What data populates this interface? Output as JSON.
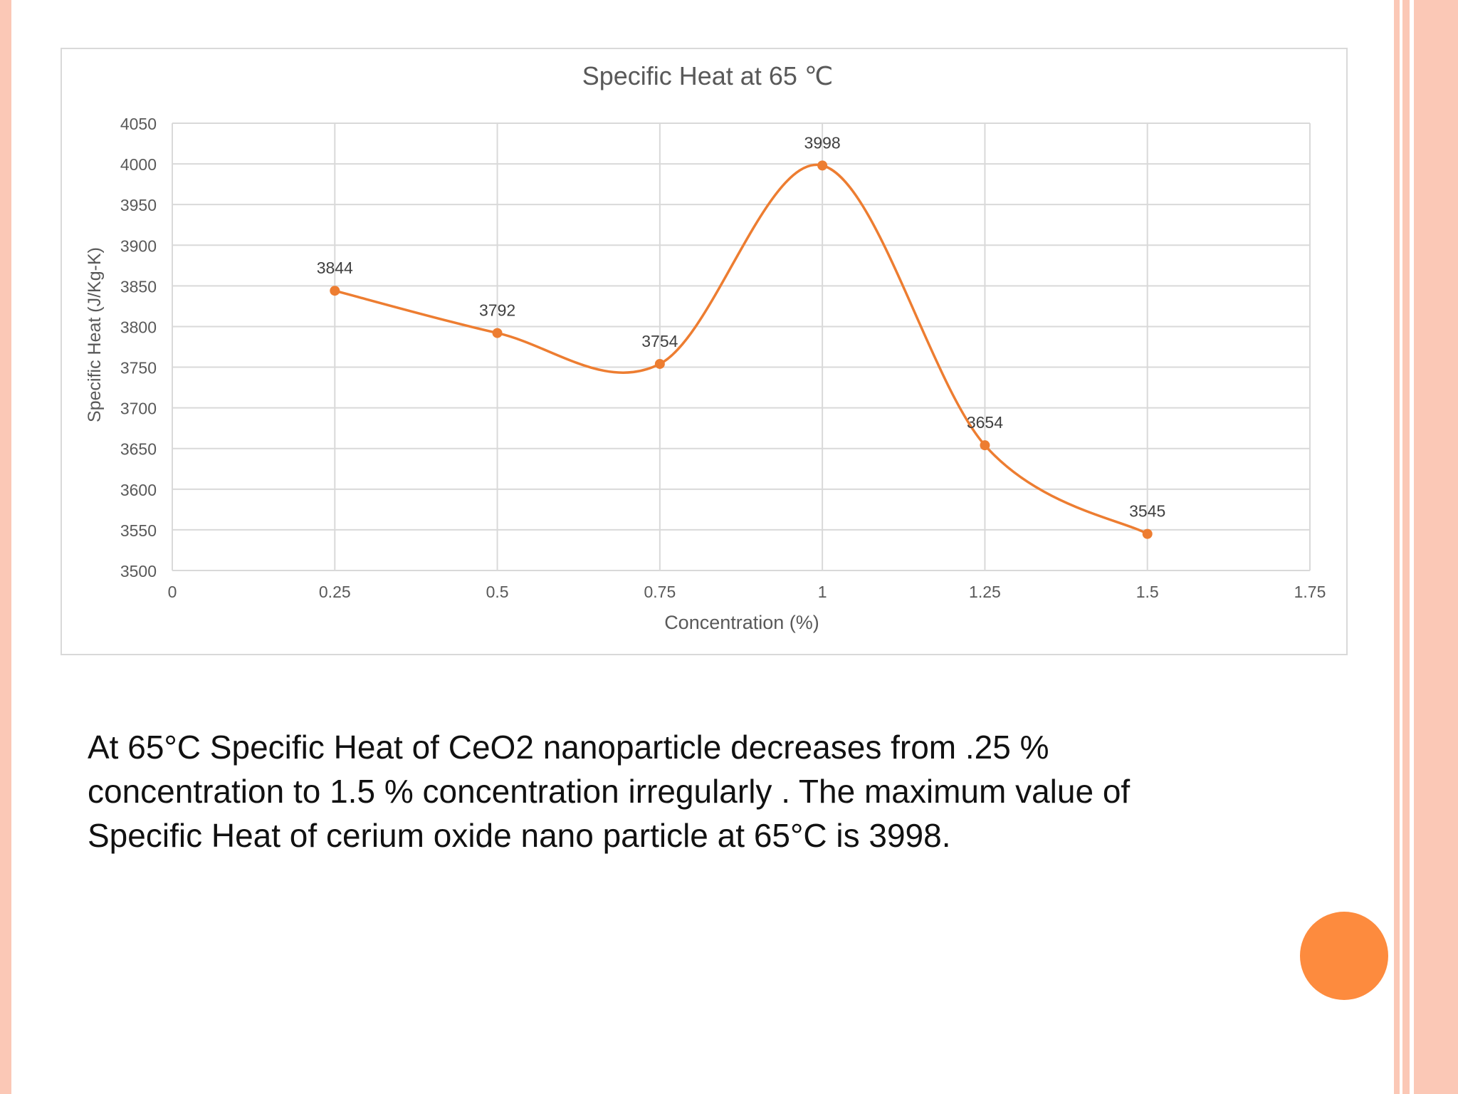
{
  "theme": {
    "accent": "#fd8b3e",
    "stripe_color": "#fbc8b6",
    "series_color": "#ed7d31",
    "grid_color": "#d9d9d9",
    "text_color": "#595959"
  },
  "chart_data": {
    "type": "line",
    "title": "Specific Heat at 65 ℃",
    "xlabel": "Concentration (%)",
    "ylabel": "Specific Heat (J/Kg-K)",
    "xlim": [
      0,
      1.75
    ],
    "ylim": [
      3500,
      4050
    ],
    "x_ticks": [
      "0",
      "0.25",
      "0.5",
      "0.75",
      "1",
      "1.25",
      "1.5",
      "1.75"
    ],
    "x_tick_values": [
      0,
      0.25,
      0.5,
      0.75,
      1,
      1.25,
      1.5,
      1.75
    ],
    "y_ticks": [
      "3500",
      "3550",
      "3600",
      "3650",
      "3700",
      "3750",
      "3800",
      "3850",
      "3900",
      "3950",
      "4000",
      "4050"
    ],
    "y_tick_values": [
      3500,
      3550,
      3600,
      3650,
      3700,
      3750,
      3800,
      3850,
      3900,
      3950,
      4000,
      4050
    ],
    "grid": true,
    "smooth": true,
    "series": [
      {
        "name": "Specific Heat",
        "x": [
          0.25,
          0.5,
          0.75,
          1,
          1.25,
          1.5
        ],
        "y": [
          3844,
          3792,
          3754,
          3998,
          3654,
          3545
        ],
        "labels": [
          "3844",
          "3792",
          "3754",
          "3998",
          "3654",
          "3545"
        ]
      }
    ]
  },
  "description": {
    "line1": "At 65°C Specific Heat of CeO2 nanoparticle decreases from .25 %",
    "line2": "concentration to 1.5 % concentration irregularly . The maximum value of",
    "line3": "Specific Heat of cerium oxide nano particle at 65°C is 3998."
  }
}
